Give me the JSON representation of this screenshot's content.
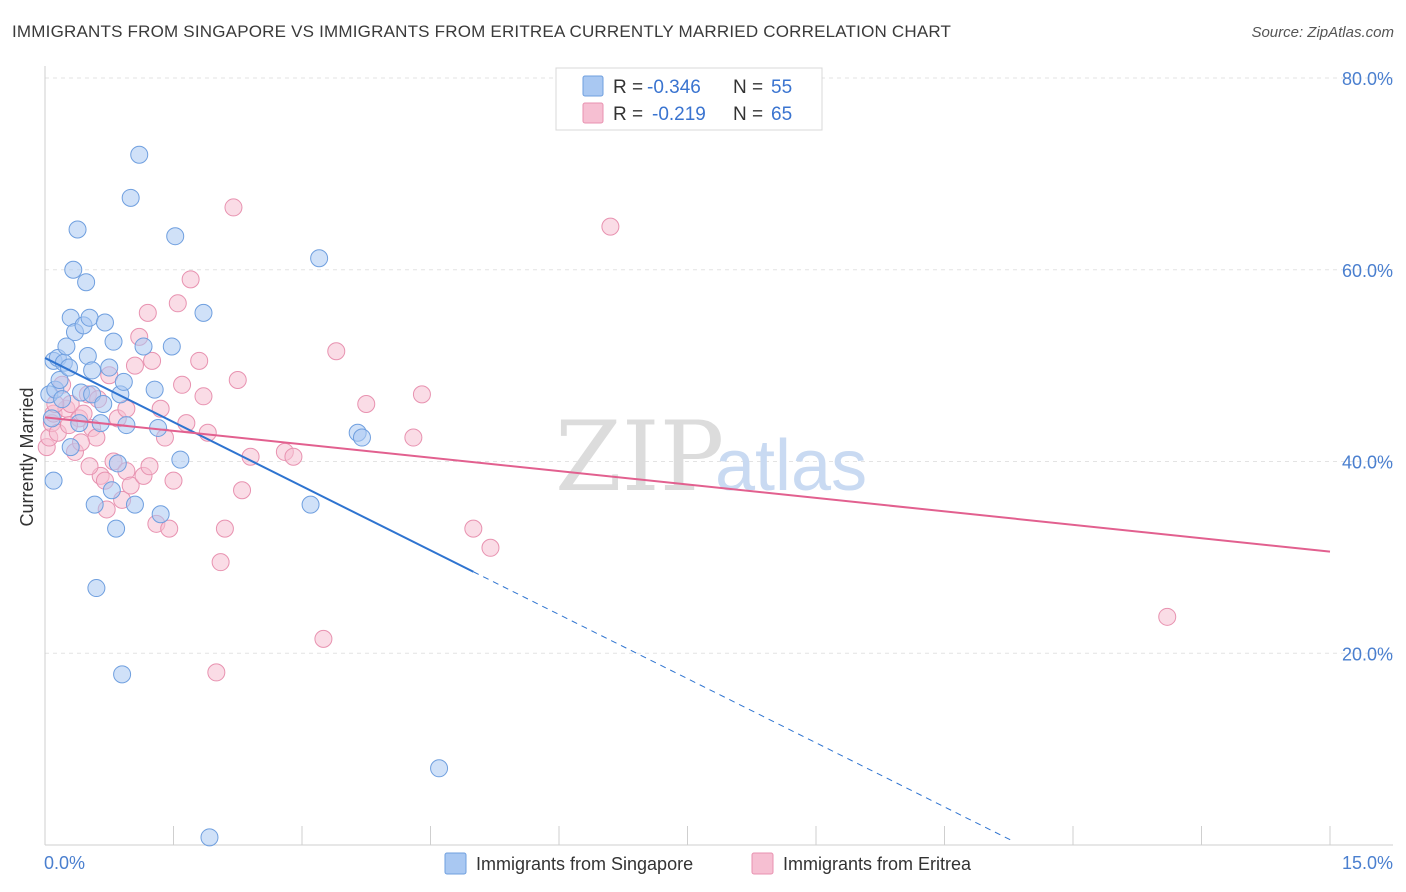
{
  "title": "IMMIGRANTS FROM SINGAPORE VS IMMIGRANTS FROM ERITREA CURRENTLY MARRIED CORRELATION CHART",
  "source": "Source: ZipAtlas.com",
  "colors": {
    "singapore": "#a9c8f2",
    "singapore_stroke": "#6f9fdf",
    "singapore_line": "#2f74d0",
    "eritrea": "#f6bfd2",
    "eritrea_stroke": "#e892b0",
    "eritrea_line": "#e2608f",
    "accent_text": "#4a7fcf"
  },
  "legend": {
    "r_label": "R =",
    "n_label": "N =",
    "entries": [
      {
        "r": "-0.346",
        "n": "55"
      },
      {
        "r": "-0.219",
        "n": "65"
      }
    ]
  },
  "watermark": {
    "zip": "ZIP",
    "atlas": "atlas"
  },
  "chart_data": {
    "type": "scatter",
    "xlabel": "",
    "ylabel": "Currently Married",
    "xlim": [
      0,
      15
    ],
    "ylim": [
      0,
      80
    ],
    "x_tick_labels": [
      "0.0%",
      "15.0%"
    ],
    "y_ticks": [
      20,
      40,
      60,
      80
    ],
    "y_tick_labels": [
      "20.0%",
      "40.0%",
      "60.0%",
      "80.0%"
    ],
    "grid": true,
    "legend_position": "top-center",
    "series": [
      {
        "name": "Immigrants from Singapore",
        "trend": {
          "x0": 0.0,
          "y0": 50.8,
          "x1": 5.0,
          "y1": 28.5,
          "dash_to_x": 11.3
        },
        "points": [
          [
            0.05,
            47.0
          ],
          [
            0.08,
            44.5
          ],
          [
            0.1,
            50.5
          ],
          [
            0.12,
            47.5
          ],
          [
            0.15,
            50.8
          ],
          [
            0.17,
            48.5
          ],
          [
            0.2,
            46.5
          ],
          [
            0.22,
            50.3
          ],
          [
            0.25,
            52.0
          ],
          [
            0.28,
            49.8
          ],
          [
            0.3,
            55.0
          ],
          [
            0.33,
            60.0
          ],
          [
            0.35,
            53.5
          ],
          [
            0.38,
            64.2
          ],
          [
            0.42,
            47.2
          ],
          [
            0.45,
            54.2
          ],
          [
            0.48,
            58.7
          ],
          [
            0.5,
            51.0
          ],
          [
            0.52,
            55.0
          ],
          [
            0.55,
            47.0
          ],
          [
            0.58,
            35.5
          ],
          [
            0.6,
            26.8
          ],
          [
            0.65,
            44.0
          ],
          [
            0.68,
            46.0
          ],
          [
            0.75,
            49.8
          ],
          [
            0.78,
            37.0
          ],
          [
            0.8,
            52.5
          ],
          [
            0.83,
            33.0
          ],
          [
            0.85,
            39.8
          ],
          [
            0.88,
            47.0
          ],
          [
            0.9,
            17.8
          ],
          [
            0.92,
            48.3
          ],
          [
            0.95,
            43.8
          ],
          [
            1.0,
            67.5
          ],
          [
            1.05,
            35.5
          ],
          [
            1.1,
            72.0
          ],
          [
            1.15,
            52.0
          ],
          [
            1.28,
            47.5
          ],
          [
            1.32,
            43.5
          ],
          [
            1.35,
            34.5
          ],
          [
            1.48,
            52.0
          ],
          [
            1.52,
            63.5
          ],
          [
            1.58,
            40.2
          ],
          [
            1.85,
            55.5
          ],
          [
            1.92,
            0.8
          ],
          [
            3.2,
            61.2
          ],
          [
            3.1,
            35.5
          ],
          [
            3.65,
            43.0
          ],
          [
            3.7,
            42.5
          ],
          [
            4.6,
            8.0
          ],
          [
            0.4,
            44.0
          ],
          [
            0.7,
            54.5
          ],
          [
            0.1,
            38.0
          ],
          [
            0.3,
            41.5
          ],
          [
            0.55,
            49.5
          ]
        ]
      },
      {
        "name": "Immigrants from Eritrea",
        "trend": {
          "x0": 0.0,
          "y0": 44.6,
          "x1": 15.0,
          "y1": 30.6
        },
        "points": [
          [
            0.02,
            41.5
          ],
          [
            0.05,
            42.5
          ],
          [
            0.08,
            44.0
          ],
          [
            0.1,
            45.0
          ],
          [
            0.15,
            43.0
          ],
          [
            0.2,
            48.0
          ],
          [
            0.25,
            45.5
          ],
          [
            0.3,
            46.0
          ],
          [
            0.35,
            41.0
          ],
          [
            0.4,
            44.5
          ],
          [
            0.45,
            45.0
          ],
          [
            0.5,
            47.0
          ],
          [
            0.55,
            43.5
          ],
          [
            0.6,
            42.5
          ],
          [
            0.65,
            38.5
          ],
          [
            0.7,
            38.0
          ],
          [
            0.75,
            49.0
          ],
          [
            0.8,
            40.0
          ],
          [
            0.85,
            44.5
          ],
          [
            0.9,
            36.0
          ],
          [
            0.95,
            39.0
          ],
          [
            1.0,
            37.5
          ],
          [
            1.05,
            50.0
          ],
          [
            1.1,
            53.0
          ],
          [
            1.15,
            38.5
          ],
          [
            1.2,
            55.5
          ],
          [
            1.25,
            50.5
          ],
          [
            1.3,
            33.5
          ],
          [
            1.35,
            45.5
          ],
          [
            1.4,
            42.5
          ],
          [
            1.45,
            33.0
          ],
          [
            1.5,
            38.0
          ],
          [
            1.55,
            56.5
          ],
          [
            1.6,
            48.0
          ],
          [
            1.7,
            59.0
          ],
          [
            1.8,
            50.5
          ],
          [
            1.85,
            46.8
          ],
          [
            1.9,
            43.0
          ],
          [
            2.0,
            18.0
          ],
          [
            2.05,
            29.5
          ],
          [
            2.1,
            33.0
          ],
          [
            2.2,
            66.5
          ],
          [
            2.25,
            48.5
          ],
          [
            2.3,
            37.0
          ],
          [
            2.4,
            40.5
          ],
          [
            2.8,
            41.0
          ],
          [
            2.9,
            40.5
          ],
          [
            3.25,
            21.5
          ],
          [
            3.4,
            51.5
          ],
          [
            3.75,
            46.0
          ],
          [
            4.3,
            42.5
          ],
          [
            4.4,
            47.0
          ],
          [
            5.0,
            33.0
          ],
          [
            5.2,
            31.0
          ],
          [
            6.6,
            64.5
          ],
          [
            13.1,
            23.8
          ],
          [
            0.12,
            46.0
          ],
          [
            0.28,
            43.8
          ],
          [
            0.42,
            42.0
          ],
          [
            0.62,
            46.5
          ],
          [
            0.95,
            45.5
          ],
          [
            1.22,
            39.5
          ],
          [
            0.72,
            35.0
          ],
          [
            0.52,
            39.5
          ],
          [
            1.65,
            44.0
          ]
        ]
      }
    ]
  },
  "bottom_legend": [
    "Immigrants from Singapore",
    "Immigrants from Eritrea"
  ]
}
